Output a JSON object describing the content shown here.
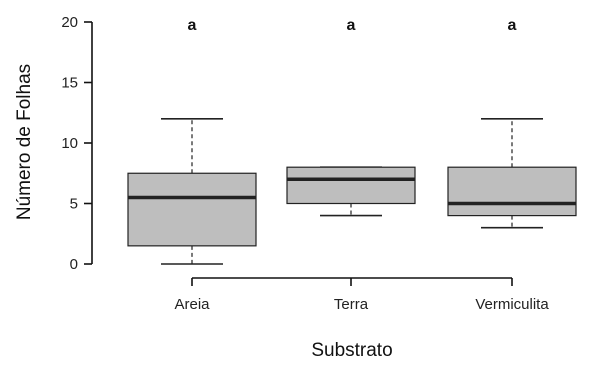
{
  "chart_data": {
    "type": "boxplot",
    "xlabel": "Substrato",
    "ylabel": "Número de Folhas",
    "ylim": [
      0,
      20
    ],
    "yticks": [
      0,
      5,
      10,
      15,
      20
    ],
    "categories": [
      "Areia",
      "Terra",
      "Vermiculita"
    ],
    "boxes": [
      {
        "category": "Areia",
        "min": 0,
        "q1": 1.5,
        "median": 5.5,
        "q3": 7.5,
        "max": 12,
        "group_letter": "a"
      },
      {
        "category": "Terra",
        "min": 4,
        "q1": 5,
        "median": 7,
        "q3": 8,
        "max": 8,
        "group_letter": "a"
      },
      {
        "category": "Vermiculita",
        "min": 3,
        "q1": 4,
        "median": 5,
        "q3": 8,
        "max": 12,
        "group_letter": "a"
      }
    ],
    "box_fill": "#bebebe",
    "box_stroke": "#222222",
    "grid": false
  }
}
